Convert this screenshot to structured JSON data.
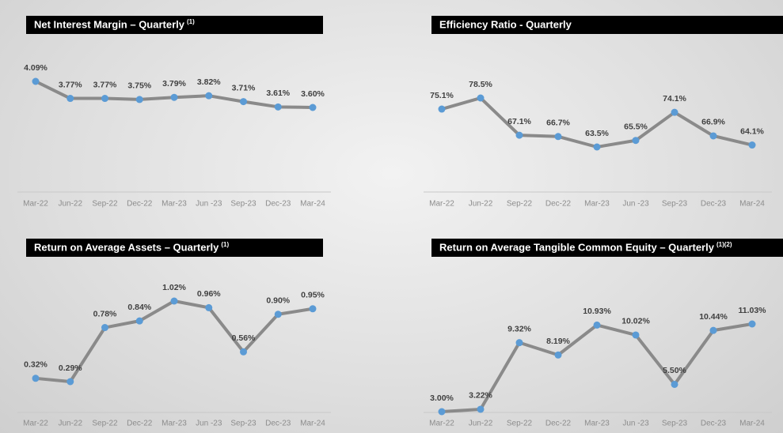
{
  "chart_data": [
    {
      "type": "line",
      "title": "Net Interest Margin – Quarterly",
      "title_note": "(1)",
      "categories": [
        "Mar-22",
        "Jun-22",
        "Sep-22",
        "Dec-22",
        "Mar-23",
        "Jun -23",
        "Sep-23",
        "Dec-23",
        "Mar-24"
      ],
      "values": [
        4.09,
        3.77,
        3.77,
        3.75,
        3.79,
        3.82,
        3.71,
        3.61,
        3.6
      ],
      "value_labels": [
        "4.09%",
        "3.77%",
        "3.77%",
        "3.75%",
        "3.79%",
        "3.82%",
        "3.71%",
        "3.61%",
        "3.60%"
      ],
      "color": "#8a8a8a",
      "marker_color": "#5b9bd5"
    },
    {
      "type": "line",
      "title": "Efficiency Ratio - Quarterly",
      "categories": [
        "Mar-22",
        "Jun-22",
        "Sep-22",
        "Dec-22",
        "Mar-23",
        "Jun -23",
        "Sep-23",
        "Dec-23",
        "Mar-24"
      ],
      "values": [
        75.1,
        78.5,
        67.1,
        66.7,
        63.5,
        65.5,
        74.1,
        66.9,
        64.1
      ],
      "value_labels": [
        "75.1%",
        "78.5%",
        "67.1%",
        "66.7%",
        "63.5%",
        "65.5%",
        "74.1%",
        "66.9%",
        "64.1%"
      ],
      "color": "#8a8a8a",
      "marker_color": "#5b9bd5"
    },
    {
      "type": "line",
      "title": "Return on Average Assets – Quarterly",
      "title_note": "(1)",
      "categories": [
        "Mar-22",
        "Jun-22",
        "Sep-22",
        "Dec-22",
        "Mar-23",
        "Jun -23",
        "Sep-23",
        "Dec-23",
        "Mar-24"
      ],
      "values": [
        0.32,
        0.29,
        0.78,
        0.84,
        1.02,
        0.96,
        0.56,
        0.9,
        0.95
      ],
      "value_labels": [
        "0.32%",
        "0.29%",
        "0.78%",
        "0.84%",
        "1.02%",
        "0.96%",
        "0.56%",
        "0.90%",
        "0.95%"
      ],
      "color": "#8a8a8a",
      "marker_color": "#5b9bd5"
    },
    {
      "type": "line",
      "title": "Return on Average Tangible Common Equity – Quarterly",
      "title_note": "(1)(2)",
      "categories": [
        "Mar-22",
        "Jun-22",
        "Sep-22",
        "Dec-22",
        "Mar-23",
        "Jun -23",
        "Sep-23",
        "Dec-23",
        "Mar-24"
      ],
      "values": [
        3.0,
        3.22,
        9.32,
        8.19,
        10.93,
        10.02,
        5.5,
        10.44,
        11.03
      ],
      "value_labels": [
        "3.00%",
        "3.22%",
        "9.32%",
        "8.19%",
        "10.93%",
        "10.02%",
        "5.50%",
        "10.44%",
        "11.03%"
      ],
      "color": "#8a8a8a",
      "marker_color": "#5b9bd5"
    }
  ]
}
